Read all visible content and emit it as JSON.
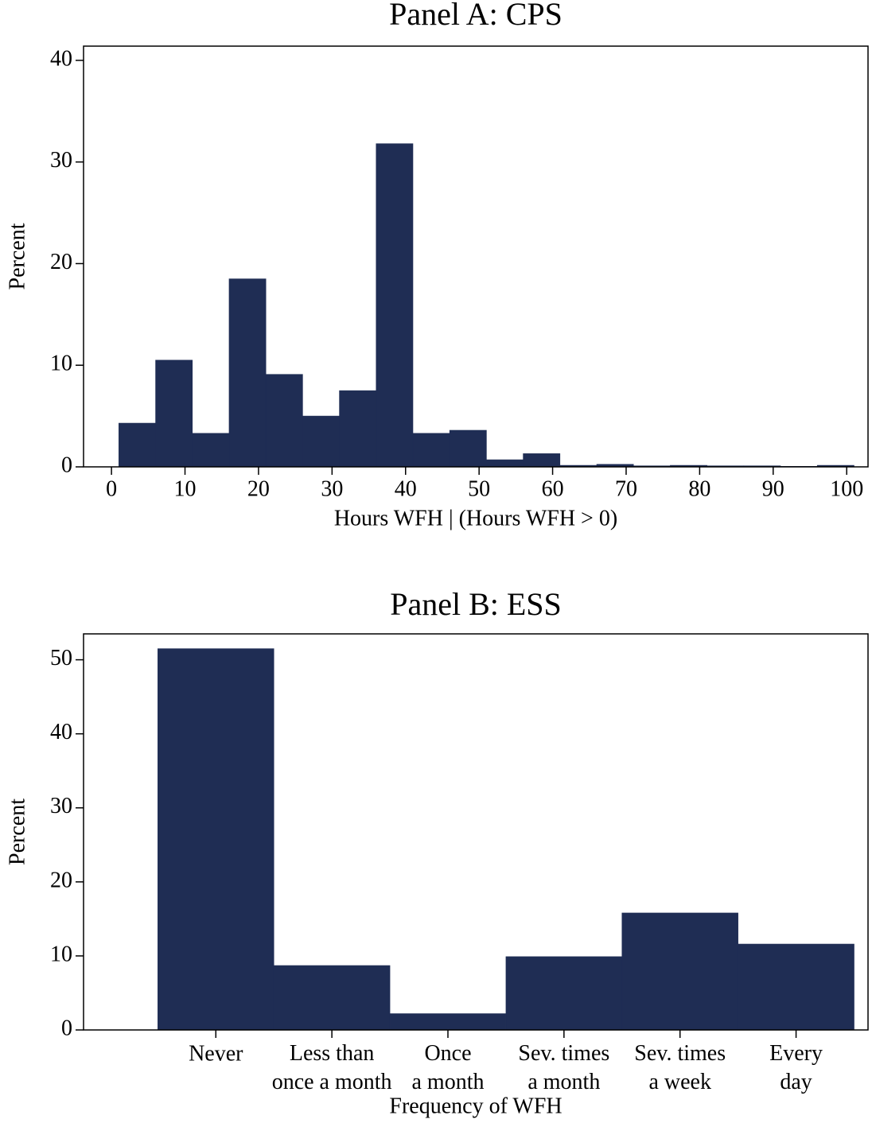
{
  "chart_data": [
    {
      "type": "histogram",
      "title": "Panel A: CPS",
      "x_label": "Hours WFH | (Hours WFH > 0)",
      "y_label": "Percent",
      "bins": [
        1,
        6,
        11,
        16,
        21,
        26,
        31,
        36,
        41,
        46,
        51,
        56,
        61,
        66,
        71,
        76,
        81,
        86,
        91,
        96,
        101
      ],
      "values": [
        4.3,
        10.5,
        3.3,
        18.5,
        9.1,
        5.0,
        7.5,
        31.8,
        3.3,
        3.6,
        0.7,
        1.3,
        0.15,
        0.25,
        0.1,
        0.15,
        0.1,
        0.1,
        0.05,
        0.15
      ],
      "color": "#1f2d54",
      "xlim": [
        -3.8,
        102.9
      ],
      "xticks": [
        0,
        10,
        20,
        30,
        40,
        50,
        60,
        70,
        80,
        90,
        100
      ],
      "ylim": [
        0,
        41.4
      ],
      "yticks": [
        0,
        10,
        20,
        30,
        40
      ]
    },
    {
      "type": "bar",
      "title": "Panel B: ESS",
      "x_label": "Frequency of WFH",
      "y_label": "Percent",
      "categories": [
        "Never",
        "Less than\nonce a month",
        "Once\na month",
        "Sev. times\na month",
        "Sev. times\na week",
        "Every\nday"
      ],
      "values": [
        51.5,
        8.7,
        2.2,
        9.9,
        15.8,
        11.6
      ],
      "color": "#1f2d54",
      "xlim": [
        -0.14,
        6.62
      ],
      "ylim": [
        0,
        53.5
      ],
      "yticks": [
        0,
        10,
        20,
        30,
        40,
        50
      ]
    }
  ]
}
